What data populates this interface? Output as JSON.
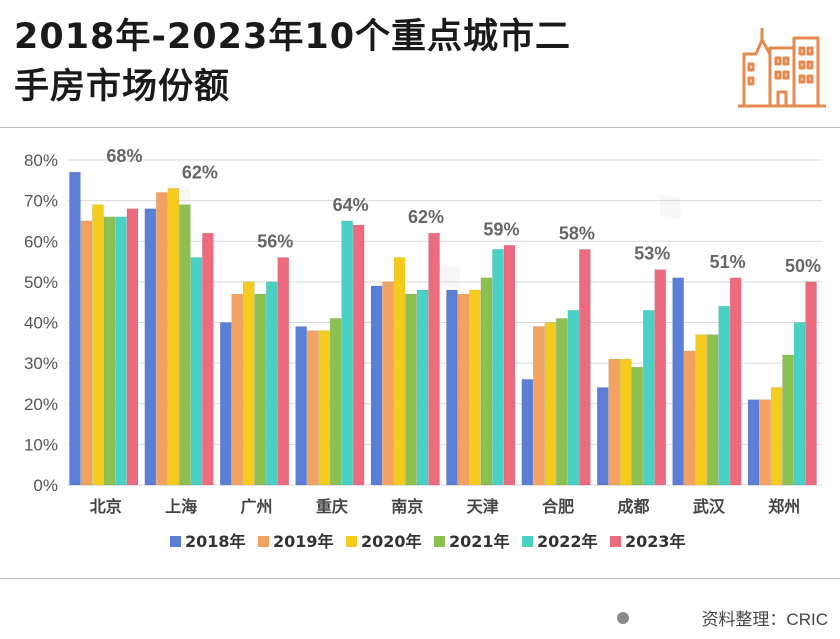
{
  "header": {
    "title_line1": "2018年-2023年10个重点城市二",
    "title_line2": "手房市场份额"
  },
  "footer": {
    "source": "资料整理：CRIC"
  },
  "chart_data": {
    "type": "bar",
    "title": "2018年-2023年10个重点城市二手房市场份额",
    "xlabel": "",
    "ylabel": "",
    "ylim": [
      0,
      80
    ],
    "yticks": [
      "0%",
      "10%",
      "20%",
      "30%",
      "40%",
      "50%",
      "60%",
      "70%",
      "80%"
    ],
    "grid": true,
    "legend": "bottom",
    "categories": [
      "北京",
      "上海",
      "广州",
      "重庆",
      "南京",
      "天津",
      "合肥",
      "成都",
      "武汉",
      "郑州"
    ],
    "series": [
      {
        "name": "2018年",
        "color": "#5b7fd6",
        "values": [
          77,
          68,
          40,
          39,
          49,
          48,
          26,
          24,
          51,
          21
        ]
      },
      {
        "name": "2019年",
        "color": "#f4a261",
        "values": [
          65,
          72,
          47,
          38,
          50,
          47,
          39,
          31,
          33,
          21
        ]
      },
      {
        "name": "2020年",
        "color": "#f5cc1d",
        "values": [
          69,
          73,
          50,
          38,
          56,
          48,
          40,
          31,
          37,
          24
        ]
      },
      {
        "name": "2021年",
        "color": "#8cc152",
        "values": [
          66,
          69,
          47,
          41,
          47,
          51,
          41,
          29,
          37,
          32
        ]
      },
      {
        "name": "2022年",
        "color": "#48d1c4",
        "values": [
          66,
          56,
          50,
          65,
          48,
          58,
          43,
          43,
          44,
          40
        ]
      },
      {
        "name": "2023年",
        "color": "#ec6b7f",
        "values": [
          68,
          62,
          56,
          64,
          62,
          59,
          58,
          53,
          51,
          50
        ]
      }
    ],
    "annotations": [
      "68%",
      "62%",
      "56%",
      "64%",
      "62%",
      "59%",
      "58%",
      "53%",
      "51%",
      "50%"
    ]
  }
}
